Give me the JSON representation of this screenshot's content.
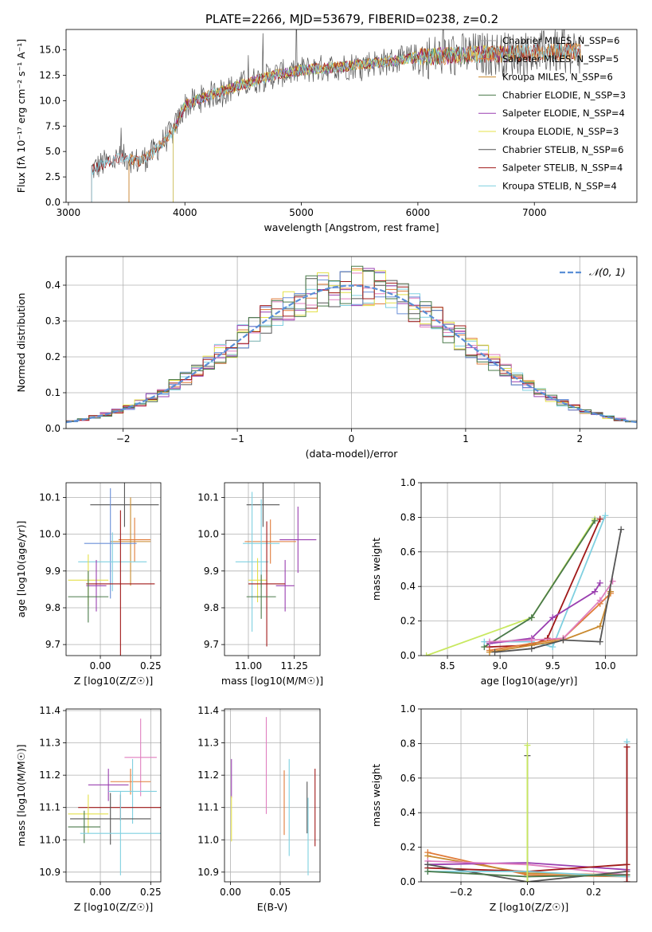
{
  "title": "PLATE=2266, MJD=53679, FIBERID=0238, z=0.2",
  "colors": [
    "#a6a6a6",
    "#e07b39",
    "#c9892e",
    "#4a7a4a",
    "#9a3fb0",
    "#e4e04a",
    "#555555",
    "#a01818",
    "#7fd0e0"
  ],
  "chart_data": [
    {
      "type": "line",
      "name": "spectrum",
      "xlabel": "wavelength [Angstrom, rest frame]",
      "ylabel": "Flux [fλ 10⁻¹⁷ erg cm⁻² s⁻¹ A⁻¹]",
      "xlim": [
        2980,
        7880
      ],
      "ylim": [
        0,
        17
      ],
      "xticks": [
        3000,
        4000,
        5000,
        6000,
        7000
      ],
      "yticks": [
        0.0,
        2.5,
        5.0,
        7.5,
        10.0,
        12.5,
        15.0
      ],
      "legend_position": "right",
      "legend": [
        "Chabrier MILES, N_SSP=6",
        "Salpeter MILES, N_SSP=5",
        "Kroupa MILES, N_SSP=6",
        "Chabrier ELODIE, N_SSP=3",
        "Salpeter ELODIE, N_SSP=4",
        "Kroupa ELODIE, N_SSP=3",
        "Chabrier STELIB, N_SSP=6",
        "Salpeter STELIB, N_SSP=4",
        "Kroupa STELIB, N_SSP=4"
      ],
      "series_ranges": [
        [
          3520,
          7400
        ],
        [
          3520,
          7400
        ],
        [
          3520,
          7400
        ],
        [
          3900,
          6800
        ],
        [
          3900,
          6800
        ],
        [
          3900,
          6800
        ],
        [
          3200,
          7400
        ],
        [
          3200,
          7400
        ],
        [
          3200,
          7400
        ]
      ],
      "envelope": {
        "x": [
          3200,
          3300,
          3400,
          3500,
          3600,
          3700,
          3800,
          3900,
          4000,
          4200,
          4400,
          4600,
          4800,
          5000,
          5200,
          5400,
          5600,
          5800,
          6000,
          6200,
          6400,
          6600,
          6800,
          7000,
          7200,
          7400
        ],
        "y": [
          3.2,
          3.8,
          4.2,
          4.4,
          4.0,
          4.6,
          5.8,
          7.0,
          9.5,
          10.5,
          11.2,
          12.0,
          12.6,
          13.0,
          13.2,
          13.4,
          13.7,
          13.9,
          14.3,
          14.4,
          14.5,
          14.6,
          14.6,
          14.7,
          14.8,
          14.8
        ]
      }
    },
    {
      "type": "bar",
      "name": "residuals",
      "xlabel": "(data-model)/error",
      "ylabel": "Normed distribution",
      "xlim": [
        -2.5,
        2.5
      ],
      "ylim": [
        0,
        0.48
      ],
      "xticks": [
        -2,
        -1,
        0,
        1,
        2
      ],
      "yticks": [
        0.0,
        0.1,
        0.2,
        0.3,
        0.4
      ],
      "legend": [
        "𝒩(0, 1)"
      ],
      "legend_position": "top-right",
      "bin_width": 0.1
    },
    {
      "type": "scatter",
      "name": "age-vs-Z",
      "xlabel": "Z [log10(Z/Z☉)]",
      "ylabel": "age  [log10(age/yr)]",
      "xlim": [
        -0.17,
        0.3
      ],
      "ylim": [
        9.67,
        10.14
      ],
      "xticks": [
        0.0,
        0.25
      ],
      "yticks": [
        9.7,
        9.8,
        9.9,
        10.0,
        10.1
      ],
      "points": [
        {
          "x": 0.12,
          "y": 10.08,
          "xe": 0.17,
          "ye": 0.06,
          "c": 6
        },
        {
          "x": 0.15,
          "y": 9.98,
          "xe": 0.1,
          "ye": 0.12,
          "c": 2
        },
        {
          "x": 0.17,
          "y": 9.985,
          "xe": 0.08,
          "ye": 0.06,
          "c": 1
        },
        {
          "x": 0.05,
          "y": 9.975,
          "xe": 0.13,
          "ye": 0.15,
          "c": 8
        },
        {
          "x": 0.06,
          "y": 9.925,
          "xe": 0.17,
          "ye": 0.08,
          "c": 8
        },
        {
          "x": -0.06,
          "y": 9.875,
          "xe": 0.1,
          "ye": 0.07,
          "c": 5
        },
        {
          "x": -0.02,
          "y": 9.86,
          "xe": 0.05,
          "ye": 0.07,
          "c": 4
        },
        {
          "x": 0.1,
          "y": 9.865,
          "xe": 0.17,
          "ye": 0.2,
          "c": 7
        },
        {
          "x": -0.06,
          "y": 9.83,
          "xe": 0.1,
          "ye": 0.07,
          "c": 3
        }
      ]
    },
    {
      "type": "scatter",
      "name": "age-vs-mass",
      "xlabel": "mass [log10(M/M☉)]",
      "ylabel": "",
      "xlim": [
        10.87,
        11.39
      ],
      "ylim": [
        9.67,
        10.14
      ],
      "xticks": [
        11.0,
        11.25
      ],
      "yticks": [
        9.7,
        9.8,
        9.9,
        10.0,
        10.1
      ],
      "points": [
        {
          "x": 11.08,
          "y": 10.08,
          "xe": 0.09,
          "ye": 0.06,
          "c": 6
        },
        {
          "x": 11.12,
          "y": 9.98,
          "xe": 0.14,
          "ye": 0.06,
          "c": 1
        },
        {
          "x": 11.07,
          "y": 9.975,
          "xe": 0.1,
          "ye": 0.12,
          "c": 8
        },
        {
          "x": 11.27,
          "y": 9.985,
          "xe": 0.1,
          "ye": 0.09,
          "c": 4
        },
        {
          "x": 11.02,
          "y": 9.925,
          "xe": 0.09,
          "ye": 0.19,
          "c": 8
        },
        {
          "x": 11.05,
          "y": 9.875,
          "xe": 0.05,
          "ye": 0.06,
          "c": 5
        },
        {
          "x": 11.2,
          "y": 9.86,
          "xe": 0.05,
          "ye": 0.07,
          "c": 4
        },
        {
          "x": 11.1,
          "y": 9.865,
          "xe": 0.1,
          "ye": 0.17,
          "c": 7
        },
        {
          "x": 11.07,
          "y": 9.83,
          "xe": 0.08,
          "ye": 0.06,
          "c": 3
        }
      ]
    },
    {
      "type": "line",
      "name": "weight-vs-age",
      "xlabel": "age  [log10(age/yr)]",
      "ylabel": "mass weight",
      "xlim": [
        8.25,
        10.3
      ],
      "ylim": [
        0,
        1.0
      ],
      "xticks": [
        8.5,
        9.0,
        9.5,
        10.0
      ],
      "yticks": [
        0.0,
        0.2,
        0.4,
        0.6,
        0.8,
        1.0
      ],
      "series": [
        {
          "c": 5,
          "x": [
            8.3,
            9.3,
            9.9
          ],
          "y": [
            0.0,
            0.22,
            0.79
          ]
        },
        {
          "c": 3,
          "x": [
            8.85,
            9.3,
            9.9
          ],
          "y": [
            0.05,
            0.22,
            0.78
          ]
        },
        {
          "c": 7,
          "x": [
            8.9,
            9.3,
            9.45,
            9.95
          ],
          "y": [
            0.05,
            0.06,
            0.1,
            0.79
          ]
        },
        {
          "c": 8,
          "x": [
            8.85,
            9.3,
            9.5,
            10.0
          ],
          "y": [
            0.08,
            0.08,
            0.05,
            0.81
          ]
        },
        {
          "c": 4,
          "x": [
            8.9,
            9.3,
            9.5,
            9.9,
            9.95
          ],
          "y": [
            0.07,
            0.1,
            0.22,
            0.37,
            0.42
          ]
        },
        {
          "c": 1,
          "x": [
            8.9,
            9.3,
            9.6,
            9.95,
            10.05
          ],
          "y": [
            0.03,
            0.07,
            0.1,
            0.3,
            0.36
          ]
        },
        {
          "c": 2,
          "x": [
            8.9,
            9.3,
            9.6,
            9.95,
            10.05
          ],
          "y": [
            0.02,
            0.06,
            0.09,
            0.17,
            0.37
          ]
        },
        {
          "c": 0,
          "x": [
            8.9,
            9.3,
            9.6,
            9.95,
            10.07
          ],
          "y": [
            0.08,
            0.09,
            0.1,
            0.32,
            0.43
          ]
        },
        {
          "c": 6,
          "x": [
            8.95,
            9.3,
            9.6,
            9.95,
            10.15
          ],
          "y": [
            0.02,
            0.04,
            0.09,
            0.08,
            0.73
          ]
        }
      ]
    },
    {
      "type": "scatter",
      "name": "mass-vs-Z",
      "xlabel": "Z [log10(Z/Z☉)]",
      "ylabel": "mass [log10(M/M☉)]",
      "xlim": [
        -0.17,
        0.3
      ],
      "ylim": [
        10.87,
        11.405
      ],
      "xticks": [
        0.0,
        0.25
      ],
      "yticks": [
        10.9,
        11.0,
        11.1,
        11.2,
        11.3,
        11.4
      ],
      "points": [
        {
          "x": 0.2,
          "y": 11.255,
          "xe": 0.08,
          "ye": 0.12,
          "c": 0
        },
        {
          "x": 0.04,
          "y": 11.17,
          "xe": 0.1,
          "ye": 0.05,
          "c": 4
        },
        {
          "x": 0.15,
          "y": 11.18,
          "xe": 0.1,
          "ye": 0.04,
          "c": 1
        },
        {
          "x": 0.16,
          "y": 11.15,
          "xe": 0.12,
          "ye": 0.1,
          "c": 8
        },
        {
          "x": 0.1,
          "y": 11.1,
          "xe": 0.21,
          "ye": 0.04,
          "c": 7
        },
        {
          "x": -0.06,
          "y": 11.08,
          "xe": 0.1,
          "ye": 0.06,
          "c": 5
        },
        {
          "x": 0.05,
          "y": 11.065,
          "xe": 0.2,
          "ye": 0.08,
          "c": 6
        },
        {
          "x": -0.08,
          "y": 11.04,
          "xe": 0.08,
          "ye": 0.05,
          "c": 3
        },
        {
          "x": 0.1,
          "y": 11.02,
          "xe": 0.2,
          "ye": 0.13,
          "c": 8
        }
      ]
    },
    {
      "type": "scatter",
      "name": "mass-vs-EBV",
      "xlabel": "E(B-V)",
      "ylabel": "",
      "xlim": [
        -0.006,
        0.09
      ],
      "ylim": [
        10.87,
        11.405
      ],
      "xticks": [
        0.0,
        0.05
      ],
      "yticks": [
        10.9,
        11.0,
        11.1,
        11.2,
        11.3,
        11.4
      ],
      "points": [
        {
          "x": 0.001,
          "y": 11.19,
          "ye": 0.06,
          "c": 4
        },
        {
          "x": 0.001,
          "y": 11.065,
          "ye": 0.07,
          "c": 5
        },
        {
          "x": 0.036,
          "y": 11.23,
          "ye": 0.15,
          "c": 0
        },
        {
          "x": 0.054,
          "y": 11.115,
          "ye": 0.1,
          "c": 1
        },
        {
          "x": 0.059,
          "y": 11.1,
          "ye": 0.15,
          "c": 8
        },
        {
          "x": 0.077,
          "y": 11.1,
          "ye": 0.08,
          "c": 6
        },
        {
          "x": 0.078,
          "y": 11.01,
          "ye": 0.12,
          "c": 8
        },
        {
          "x": 0.085,
          "y": 11.1,
          "ye": 0.12,
          "c": 7
        }
      ]
    },
    {
      "type": "line",
      "name": "weight-vs-Z",
      "xlabel": "Z [log10(Z/Z☉)]",
      "ylabel": "mass weight",
      "xlim": [
        -0.32,
        0.33
      ],
      "ylim": [
        0,
        1.0
      ],
      "xticks": [
        -0.2,
        0.0,
        0.2
      ],
      "yticks": [
        0.0,
        0.2,
        0.4,
        0.6,
        0.8,
        1.0
      ],
      "series": [
        {
          "c": 1,
          "x": [
            -0.3,
            0.0,
            0.3
          ],
          "y": [
            0.17,
            0.04,
            0.03
          ]
        },
        {
          "c": 2,
          "x": [
            -0.3,
            0.0,
            0.3
          ],
          "y": [
            0.15,
            0.05,
            0.04
          ]
        },
        {
          "c": 4,
          "x": [
            -0.3,
            0.0,
            0.3
          ],
          "y": [
            0.1,
            0.11,
            0.07
          ]
        },
        {
          "c": 0,
          "x": [
            -0.3,
            0.0,
            0.3
          ],
          "y": [
            0.12,
            0.1,
            0.04
          ]
        },
        {
          "c": 7,
          "x": [
            -0.3,
            0.0,
            0.3
          ],
          "y": [
            0.08,
            0.06,
            0.1
          ]
        },
        {
          "c": 6,
          "x": [
            -0.3,
            0.0,
            0.3
          ],
          "y": [
            0.1,
            0.0,
            0.06
          ]
        },
        {
          "c": 8,
          "x": [
            -0.3,
            0.0,
            0.3
          ],
          "y": [
            0.06,
            0.06,
            0.03
          ]
        },
        {
          "c": 3,
          "x": [
            -0.3,
            0.0,
            0.3
          ],
          "y": [
            0.06,
            0.03,
            0.04
          ]
        },
        {
          "c": 6,
          "x": [
            0.0,
            0.0
          ],
          "y": [
            0.0,
            0.73
          ]
        },
        {
          "c": 5,
          "x": [
            0.0,
            0.0
          ],
          "y": [
            0.0,
            0.79
          ]
        },
        {
          "c": 8,
          "x": [
            0.3,
            0.3
          ],
          "y": [
            0.0,
            0.81
          ]
        },
        {
          "c": 7,
          "x": [
            0.3,
            0.3
          ],
          "y": [
            0.0,
            0.78
          ]
        }
      ]
    }
  ]
}
